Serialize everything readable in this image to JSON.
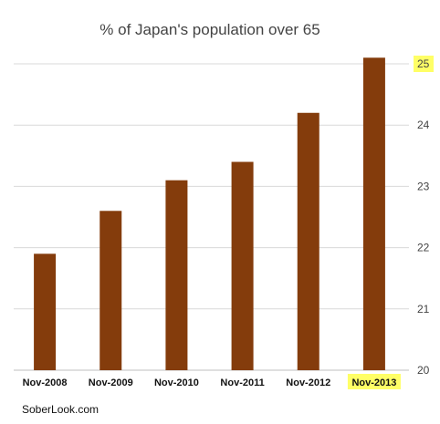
{
  "chart_data": {
    "type": "bar",
    "title": "% of Japan's population over 65",
    "categories": [
      "Nov-2008",
      "Nov-2009",
      "Nov-2010",
      "Nov-2011",
      "Nov-2012",
      "Nov-2013"
    ],
    "values": [
      21.9,
      22.6,
      23.1,
      23.4,
      24.2,
      25.1
    ],
    "ylim": [
      20,
      25
    ],
    "yticks": [
      "20",
      "21",
      "22",
      "23",
      "24",
      "25"
    ],
    "xlabel": "",
    "ylabel": "",
    "y_axis_side": "right",
    "grid": true,
    "legend": "none",
    "highlighted_category": "Nov-2013",
    "highlighted_ytick": "25",
    "bar_color": "#843C0C",
    "highlight_color": "#FFFF66",
    "grid_color": "#D9D9D9"
  },
  "source_label": "SoberLook.com"
}
